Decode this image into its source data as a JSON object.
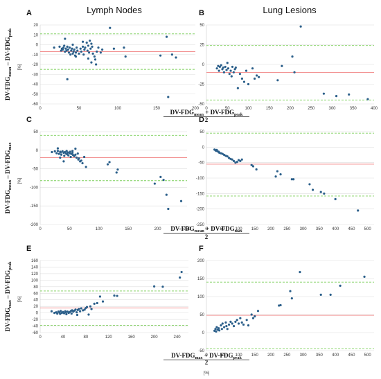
{
  "column_titles": [
    "Lymph Nodes",
    "Lung Lesions"
  ],
  "row_ylabels": [
    {
      "main": "DV-FDG",
      "a": "mean",
      "mid": " – DV-FDG",
      "b": "peak"
    },
    {
      "main": "DV-FDG",
      "a": "mean",
      "mid": " – DV-FDG",
      "b": "max"
    },
    {
      "main": "DV-FDG",
      "a": "max",
      "mid": " – DV-FDG",
      "b": "peak"
    }
  ],
  "row_xlabels": [
    {
      "main": "DV-FDG",
      "a": "mean",
      "mid": " + DV-FDG",
      "b": "peak",
      "den": "2"
    },
    {
      "main": "DV-FDG",
      "a": "mean",
      "mid": " + DV-FDG",
      "b": "max",
      "den": "2"
    },
    {
      "main": "DV-FDG",
      "a": "max",
      "mid": " + DV-FDG",
      "b": "peak",
      "den": "2"
    }
  ],
  "unit_label": "[%]",
  "colors": {
    "points": "#2b5f8a",
    "mean_line": "#f08080",
    "loa_line": "#7ccf5a",
    "grid": "#dddddd"
  },
  "chart_data": [
    {
      "panel": "A",
      "type": "scatter",
      "xlim": [
        0,
        200
      ],
      "ylim": [
        -60,
        20
      ],
      "xticks": [
        0,
        50,
        100,
        150,
        200
      ],
      "yticks": [
        20,
        10,
        0,
        -10,
        -20,
        -30,
        -40,
        -50,
        -60
      ],
      "mean": -7,
      "loa": [
        11,
        -25
      ],
      "points": [
        [
          18,
          -3
        ],
        [
          25,
          -2
        ],
        [
          27,
          -6
        ],
        [
          28,
          -4
        ],
        [
          29,
          -5
        ],
        [
          30,
          -3
        ],
        [
          31,
          -1
        ],
        [
          32,
          -7
        ],
        [
          33,
          -4
        ],
        [
          34,
          -6
        ],
        [
          35,
          -2
        ],
        [
          36,
          -5
        ],
        [
          37,
          -8
        ],
        [
          38,
          -3
        ],
        [
          39,
          -10
        ],
        [
          40,
          -6
        ],
        [
          41,
          -4
        ],
        [
          42,
          -9
        ],
        [
          43,
          -7
        ],
        [
          44,
          -5
        ],
        [
          45,
          -11
        ],
        [
          46,
          -8
        ],
        [
          47,
          -3
        ],
        [
          48,
          -6
        ],
        [
          50,
          -9
        ],
        [
          52,
          -4
        ],
        [
          53,
          -7
        ],
        [
          55,
          -2
        ],
        [
          56,
          -10
        ],
        [
          57,
          -5
        ],
        [
          58,
          -3
        ],
        [
          60,
          2
        ],
        [
          61,
          -6
        ],
        [
          62,
          -1
        ],
        [
          63,
          -8
        ],
        [
          64,
          4
        ],
        [
          65,
          -4
        ],
        [
          66,
          1
        ],
        [
          67,
          -2
        ],
        [
          68,
          -9
        ],
        [
          70,
          -12
        ],
        [
          71,
          -15
        ],
        [
          72,
          -20
        ],
        [
          73,
          -7
        ],
        [
          75,
          -3
        ],
        [
          78,
          -8
        ],
        [
          80,
          -5
        ],
        [
          32,
          6
        ],
        [
          35,
          -35
        ],
        [
          42,
          0
        ],
        [
          46,
          -12
        ],
        [
          55,
          3
        ],
        [
          62,
          -14
        ],
        [
          66,
          -18
        ],
        [
          90,
          17
        ],
        [
          95,
          -4
        ],
        [
          108,
          -3
        ],
        [
          110,
          -12
        ],
        [
          155,
          -11
        ],
        [
          163,
          8
        ],
        [
          165,
          -53
        ],
        [
          170,
          -10
        ],
        [
          175,
          -13
        ]
      ]
    },
    {
      "panel": "B",
      "type": "scatter",
      "xlim": [
        0,
        400
      ],
      "ylim": [
        -50,
        50
      ],
      "xticks": [
        0,
        50,
        100,
        150,
        200,
        250,
        300,
        350,
        400
      ],
      "yticks": [
        50,
        25,
        0,
        -25,
        -50
      ],
      "mean": -10,
      "loa": [
        24,
        -45
      ],
      "points": [
        [
          25,
          -5
        ],
        [
          28,
          -2
        ],
        [
          30,
          -8
        ],
        [
          32,
          -3
        ],
        [
          35,
          -1
        ],
        [
          38,
          -6
        ],
        [
          40,
          -4
        ],
        [
          42,
          -10
        ],
        [
          45,
          -3
        ],
        [
          48,
          -7
        ],
        [
          50,
          2
        ],
        [
          52,
          -5
        ],
        [
          55,
          -12
        ],
        [
          58,
          -8
        ],
        [
          60,
          -15
        ],
        [
          62,
          -3
        ],
        [
          65,
          -10
        ],
        [
          68,
          -6
        ],
        [
          70,
          -4
        ],
        [
          75,
          -30
        ],
        [
          80,
          -12
        ],
        [
          85,
          -18
        ],
        [
          90,
          -22
        ],
        [
          95,
          -8
        ],
        [
          100,
          -25
        ],
        [
          110,
          -5
        ],
        [
          115,
          -18
        ],
        [
          120,
          -14
        ],
        [
          125,
          -16
        ],
        [
          170,
          -20
        ],
        [
          180,
          -2
        ],
        [
          205,
          10
        ],
        [
          210,
          -10
        ],
        [
          225,
          48
        ],
        [
          280,
          -37
        ],
        [
          310,
          -40
        ],
        [
          340,
          -38
        ],
        [
          385,
          -44
        ]
      ]
    },
    {
      "panel": "C",
      "type": "scatter",
      "xlim": [
        0,
        250
      ],
      "ylim": [
        -200,
        50
      ],
      "xticks": [
        0,
        50,
        100,
        150,
        200,
        250
      ],
      "yticks": [
        50,
        0,
        -50,
        -100,
        -150,
        -200
      ],
      "mean": -20,
      "loa": [
        40,
        -82
      ],
      "points": [
        [
          20,
          -5
        ],
        [
          25,
          -3
        ],
        [
          28,
          -8
        ],
        [
          30,
          -2
        ],
        [
          32,
          -10
        ],
        [
          34,
          -4
        ],
        [
          35,
          -6
        ],
        [
          36,
          -12
        ],
        [
          38,
          -3
        ],
        [
          40,
          -7
        ],
        [
          41,
          -15
        ],
        [
          42,
          -5
        ],
        [
          44,
          -9
        ],
        [
          45,
          -2
        ],
        [
          46,
          -11
        ],
        [
          47,
          -6
        ],
        [
          48,
          -14
        ],
        [
          50,
          -8
        ],
        [
          51,
          -4
        ],
        [
          52,
          -18
        ],
        [
          53,
          -10
        ],
        [
          55,
          -7
        ],
        [
          56,
          -13
        ],
        [
          58,
          -16
        ],
        [
          60,
          -12
        ],
        [
          62,
          -20
        ],
        [
          64,
          -9
        ],
        [
          65,
          -25
        ],
        [
          66,
          -22
        ],
        [
          68,
          -30
        ],
        [
          70,
          -28
        ],
        [
          72,
          -35
        ],
        [
          75,
          -18
        ],
        [
          78,
          -45
        ],
        [
          30,
          5
        ],
        [
          34,
          -20
        ],
        [
          40,
          -30
        ],
        [
          55,
          -2
        ],
        [
          60,
          4
        ],
        [
          115,
          -38
        ],
        [
          118,
          -32
        ],
        [
          130,
          -60
        ],
        [
          132,
          -52
        ],
        [
          195,
          -90
        ],
        [
          205,
          -72
        ],
        [
          210,
          -80
        ],
        [
          215,
          -120
        ],
        [
          218,
          -158
        ],
        [
          240,
          -137
        ]
      ]
    },
    {
      "panel": "D",
      "type": "scatter",
      "xlim": [
        0,
        520
      ],
      "ylim": [
        -250,
        50
      ],
      "xticks": [
        0,
        50,
        100,
        150,
        200,
        250,
        300,
        350,
        400,
        450,
        500
      ],
      "yticks": [
        50,
        0,
        -50,
        -100,
        -150,
        -200,
        -250
      ],
      "mean": -55,
      "loa": [
        45,
        -158
      ],
      "points": [
        [
          25,
          -8
        ],
        [
          28,
          -10
        ],
        [
          30,
          -12
        ],
        [
          32,
          -9
        ],
        [
          35,
          -14
        ],
        [
          38,
          -15
        ],
        [
          40,
          -18
        ],
        [
          45,
          -20
        ],
        [
          50,
          -22
        ],
        [
          55,
          -25
        ],
        [
          60,
          -28
        ],
        [
          65,
          -30
        ],
        [
          70,
          -35
        ],
        [
          75,
          -38
        ],
        [
          80,
          -40
        ],
        [
          85,
          -45
        ],
        [
          90,
          -50
        ],
        [
          95,
          -48
        ],
        [
          100,
          -42
        ],
        [
          105,
          -45
        ],
        [
          110,
          -40
        ],
        [
          140,
          -58
        ],
        [
          145,
          -62
        ],
        [
          155,
          -72
        ],
        [
          215,
          -95
        ],
        [
          220,
          -78
        ],
        [
          230,
          -88
        ],
        [
          265,
          -104
        ],
        [
          270,
          -104
        ],
        [
          320,
          -120
        ],
        [
          330,
          -138
        ],
        [
          355,
          -145
        ],
        [
          365,
          -150
        ],
        [
          400,
          -168
        ],
        [
          470,
          -205
        ]
      ]
    },
    {
      "panel": "E",
      "type": "scatter",
      "xlim": [
        0,
        260
      ],
      "ylim": [
        -60,
        160
      ],
      "xticks": [
        0,
        40,
        80,
        120,
        160,
        200,
        240
      ],
      "yticks": [
        160,
        140,
        120,
        100,
        80,
        60,
        40,
        20,
        0,
        -20,
        -40,
        -60
      ],
      "mean": 15,
      "loa": [
        67,
        -38
      ],
      "points": [
        [
          20,
          5
        ],
        [
          25,
          0
        ],
        [
          28,
          2
        ],
        [
          30,
          -2
        ],
        [
          32,
          4
        ],
        [
          34,
          1
        ],
        [
          35,
          -3
        ],
        [
          36,
          6
        ],
        [
          38,
          0
        ],
        [
          40,
          3
        ],
        [
          42,
          -1
        ],
        [
          44,
          5
        ],
        [
          45,
          2
        ],
        [
          46,
          -4
        ],
        [
          48,
          4
        ],
        [
          50,
          0
        ],
        [
          52,
          3
        ],
        [
          54,
          6
        ],
        [
          55,
          -2
        ],
        [
          56,
          8
        ],
        [
          58,
          4
        ],
        [
          60,
          7
        ],
        [
          62,
          10
        ],
        [
          64,
          2
        ],
        [
          65,
          -6
        ],
        [
          66,
          9
        ],
        [
          68,
          12
        ],
        [
          70,
          5
        ],
        [
          72,
          14
        ],
        [
          75,
          8
        ],
        [
          78,
          10
        ],
        [
          80,
          15
        ],
        [
          82,
          18
        ],
        [
          85,
          -5
        ],
        [
          88,
          20
        ],
        [
          90,
          12
        ],
        [
          95,
          28
        ],
        [
          100,
          30
        ],
        [
          105,
          50
        ],
        [
          110,
          35
        ],
        [
          130,
          53
        ],
        [
          135,
          52
        ],
        [
          200,
          81
        ],
        [
          215,
          80
        ],
        [
          245,
          108
        ],
        [
          248,
          125
        ]
      ]
    },
    {
      "panel": "F",
      "type": "scatter",
      "xlim": [
        0,
        520
      ],
      "ylim": [
        -50,
        200
      ],
      "xticks": [
        0,
        50,
        100,
        150,
        200,
        250,
        300,
        350,
        400,
        450,
        500
      ],
      "yticks": [
        200,
        150,
        100,
        50,
        0,
        -50
      ],
      "mean": 48,
      "loa": [
        140,
        -45
      ],
      "points": [
        [
          25,
          5
        ],
        [
          28,
          10
        ],
        [
          30,
          3
        ],
        [
          32,
          15
        ],
        [
          35,
          8
        ],
        [
          38,
          12
        ],
        [
          40,
          6
        ],
        [
          45,
          20
        ],
        [
          48,
          10
        ],
        [
          50,
          25
        ],
        [
          55,
          15
        ],
        [
          60,
          28
        ],
        [
          62,
          18
        ],
        [
          65,
          10
        ],
        [
          70,
          22
        ],
        [
          75,
          30
        ],
        [
          80,
          25
        ],
        [
          85,
          18
        ],
        [
          90,
          30
        ],
        [
          95,
          35
        ],
        [
          100,
          25
        ],
        [
          105,
          40
        ],
        [
          110,
          28
        ],
        [
          115,
          22
        ],
        [
          125,
          35
        ],
        [
          130,
          20
        ],
        [
          140,
          50
        ],
        [
          145,
          40
        ],
        [
          150,
          45
        ],
        [
          160,
          60
        ],
        [
          225,
          75
        ],
        [
          230,
          76
        ],
        [
          260,
          115
        ],
        [
          265,
          95
        ],
        [
          290,
          168
        ],
        [
          355,
          105
        ],
        [
          385,
          105
        ],
        [
          415,
          130
        ],
        [
          490,
          155
        ]
      ]
    }
  ]
}
